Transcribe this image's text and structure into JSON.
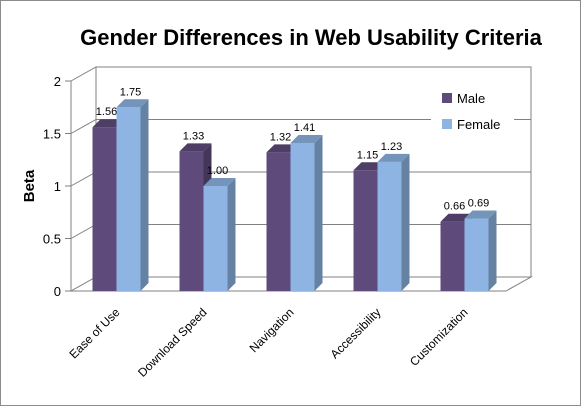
{
  "chart_data": {
    "type": "bar",
    "title": "Gender Differences in Web Usability Criteria",
    "ylabel": "Beta",
    "xlabel": "",
    "categories": [
      "Ease of Use",
      "Download Speed",
      "Navigation",
      "Accessibility",
      "Customization"
    ],
    "series": [
      {
        "name": "Male",
        "values": [
          1.56,
          1.33,
          1.32,
          1.15,
          0.66
        ],
        "labels": [
          "1.56",
          "1.33",
          "1.32",
          "1.15",
          "0.66"
        ],
        "color": "#5f4b7b"
      },
      {
        "name": "Female",
        "values": [
          1.75,
          1.0,
          1.41,
          1.23,
          0.69
        ],
        "labels": [
          "1.75",
          "1.00",
          "1.41",
          "1.23",
          "0.69"
        ],
        "color": "#8db4e2"
      }
    ],
    "ylim": [
      0,
      2
    ],
    "yticks": [
      "0",
      "0.5",
      "1",
      "1.5",
      "2"
    ],
    "grid": true,
    "legend_position": "right",
    "three_d": true
  }
}
